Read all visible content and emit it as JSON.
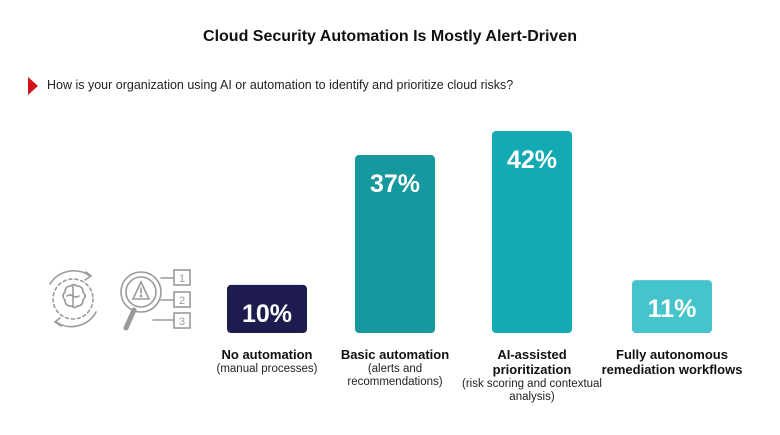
{
  "title": "Cloud Security Automation Is Mostly Alert-Driven",
  "question": "How is your organization using AI or automation to identify and prioritize cloud risks?",
  "colors": {
    "accent": "#d0141c",
    "bar_dark": "#1e1b4f",
    "bar_mid": "#16989f",
    "bar_teal": "#13aab4",
    "bar_light": "#45c4cc",
    "icon_stroke": "#9a9a9a"
  },
  "illustration": {
    "icon": "ai-brain-risk-analysis-icon",
    "list_numbers": [
      "1",
      "2",
      "3"
    ]
  },
  "chart_data": {
    "type": "bar",
    "title": "Cloud Security Automation Is Mostly Alert-Driven",
    "categories": [
      {
        "main": "No automation",
        "sub": "(manual processes)"
      },
      {
        "main": "Basic automation",
        "sub": "(alerts and recommendations)"
      },
      {
        "main": "AI-assisted prioritization",
        "sub": "(risk scoring and contextual analysis)"
      },
      {
        "main": "Fully autonomous remediation workflows",
        "sub": ""
      }
    ],
    "values": [
      10,
      37,
      42,
      11
    ],
    "labels": [
      "10%",
      "37%",
      "42%",
      "11%"
    ],
    "unit": "%",
    "grid": false,
    "legend": "none"
  }
}
